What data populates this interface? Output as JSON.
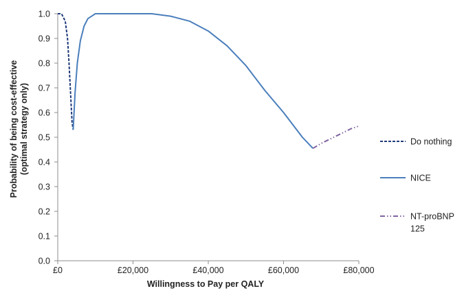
{
  "chart_data": {
    "type": "line",
    "title": "",
    "xlabel": "Willingness to Pay per QALY",
    "ylabel_lines": [
      "Probability of being cost-effective",
      "(optimal strategy only)"
    ],
    "xlim": [
      0,
      80000
    ],
    "ylim": [
      0,
      1.0
    ],
    "x_ticks": [
      0,
      20000,
      40000,
      60000,
      80000
    ],
    "x_tick_labels": [
      "£0",
      "£20,000",
      "£40,000",
      "£60,000",
      "£80,000"
    ],
    "y_ticks": [
      0,
      0.1,
      0.2,
      0.3,
      0.4,
      0.5,
      0.6,
      0.7,
      0.8,
      0.9,
      1.0
    ],
    "y_tick_labels": [
      "0.0",
      "0.1",
      "0.2",
      "0.3",
      "0.4",
      "0.5",
      "0.6",
      "0.7",
      "0.8",
      "0.9",
      "1.0"
    ],
    "grid": false,
    "legend_position": "right",
    "series": [
      {
        "name": "Do nothing",
        "color": "#1f3a7a",
        "dash": "4,2",
        "x": [
          0,
          1000,
          2000,
          2600,
          3000,
          3400,
          3800,
          4100
        ],
        "y": [
          1.0,
          1.0,
          0.97,
          0.9,
          0.8,
          0.68,
          0.56,
          0.53
        ]
      },
      {
        "name": "NICE",
        "color": "#4a7ebb",
        "dash": "",
        "x": [
          4100,
          4600,
          5200,
          6000,
          7000,
          8000,
          9000,
          10000,
          12000,
          15000,
          20000,
          25000,
          30000,
          35000,
          40000,
          45000,
          50000,
          55000,
          60000,
          65000,
          67800
        ],
        "y": [
          0.53,
          0.68,
          0.8,
          0.89,
          0.95,
          0.98,
          0.99,
          1.0,
          1.0,
          1.0,
          1.0,
          1.0,
          0.99,
          0.97,
          0.93,
          0.87,
          0.79,
          0.69,
          0.6,
          0.5,
          0.455
        ]
      },
      {
        "name": "NT-proBNP 125",
        "legend_lines": [
          "NT-proBNP",
          "125"
        ],
        "color": "#8064a2",
        "dash": "7,3,1.5,3,1.5,3",
        "x": [
          67800,
          70000,
          72000,
          74000,
          76000,
          78000,
          80000
        ],
        "y": [
          0.455,
          0.475,
          0.49,
          0.505,
          0.52,
          0.535,
          0.545
        ]
      }
    ]
  }
}
